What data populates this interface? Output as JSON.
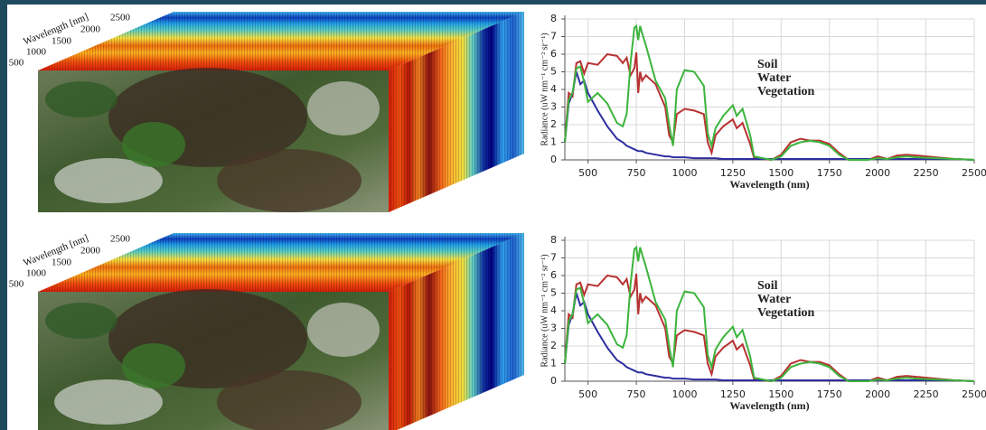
{
  "cubes": [
    {
      "axis_label": "Wavelength [nm]",
      "ticks": [
        500,
        1000,
        1500,
        2000,
        2500
      ]
    },
    {
      "axis_label": "Wavelength [nm]",
      "ticks": [
        500,
        1000,
        1500,
        2000,
        2500
      ]
    }
  ],
  "chart_data": [
    {
      "type": "line",
      "y_label": "Radiance (uW nm⁻¹ cm⁻² sr⁻¹)",
      "x_label": "Wavelength (nm)",
      "x": [
        380,
        400,
        420,
        440,
        460,
        480,
        500,
        550,
        600,
        650,
        680,
        700,
        720,
        740,
        750,
        760,
        770,
        780,
        800,
        850,
        900,
        920,
        940,
        960,
        1000,
        1050,
        1100,
        1120,
        1140,
        1160,
        1200,
        1250,
        1270,
        1300,
        1340,
        1360,
        1450,
        1500,
        1550,
        1600,
        1650,
        1700,
        1750,
        1800,
        1850,
        1950,
        2000,
        2050,
        2100,
        2150,
        2200,
        2300,
        2400,
        2500
      ],
      "series": [
        {
          "name": "Soil",
          "color": "#b83232",
          "values": [
            1,
            3.8,
            3.6,
            5.5,
            5.6,
            4.9,
            5.5,
            5.4,
            6.0,
            5.9,
            5.5,
            5.8,
            4.8,
            5.2,
            6.1,
            3.8,
            5.0,
            4.5,
            4.8,
            4.3,
            3.0,
            1.4,
            1.0,
            2.6,
            2.9,
            2.8,
            2.6,
            1.0,
            0.4,
            1.4,
            1.9,
            2.3,
            1.8,
            2.1,
            0.9,
            0.1,
            0,
            0.3,
            1.0,
            1.2,
            1.1,
            1.1,
            0.9,
            0.4,
            0,
            0,
            0.2,
            0.05,
            0.25,
            0.3,
            0.25,
            0.15,
            0.05,
            0
          ]
        },
        {
          "name": "Water",
          "color": "#2e2ea0",
          "values": [
            1,
            3.2,
            3.8,
            5.0,
            4.3,
            4.5,
            3.8,
            2.8,
            1.9,
            1.2,
            1.0,
            0.8,
            0.7,
            0.6,
            0.55,
            0.5,
            0.5,
            0.5,
            0.4,
            0.3,
            0.2,
            0.2,
            0.15,
            0.15,
            0.15,
            0.1,
            0.1,
            0.1,
            0.1,
            0.1,
            0.05,
            0.05,
            0.05,
            0.05,
            0.05,
            0.05,
            0.05,
            0.05,
            0.05,
            0.05,
            0.05,
            0.05,
            0.05,
            0.05,
            0.05,
            0.05,
            0.05,
            0.05,
            0.05,
            0.05,
            0.05,
            0.05,
            0.05,
            0
          ]
        },
        {
          "name": "Vegetation",
          "color": "#3cb43c",
          "values": [
            1,
            3.4,
            3.8,
            5.2,
            5.3,
            4.4,
            3.3,
            3.8,
            3.2,
            2.1,
            1.9,
            2.6,
            5.5,
            7.5,
            7.6,
            6.8,
            7.6,
            7.2,
            6.5,
            4.5,
            3.5,
            2.0,
            0.8,
            4.0,
            5.1,
            5.0,
            4.2,
            1.5,
            0.8,
            1.8,
            2.5,
            3.1,
            2.5,
            2.9,
            1.4,
            0.2,
            0,
            0.2,
            0.8,
            1.0,
            1.1,
            1.0,
            0.8,
            0.3,
            0,
            0,
            0.1,
            0.05,
            0.15,
            0.2,
            0.15,
            0.1,
            0.05,
            0
          ]
        }
      ],
      "xlim": [
        380,
        2500
      ],
      "xticks": [
        500,
        750,
        1000,
        1250,
        1500,
        1750,
        2000,
        2250,
        2500
      ],
      "ylim": [
        0,
        8
      ],
      "yticks": [
        0,
        1,
        2,
        3,
        4,
        5,
        6,
        7,
        8
      ],
      "grid": true,
      "legend_position": "upper-center"
    },
    {
      "type": "line",
      "y_label": "Radiance (uW nm⁻¹ cm⁻² sr⁻¹)",
      "x_label": "Wavelength (nm)",
      "x": [
        380,
        400,
        420,
        440,
        460,
        480,
        500,
        550,
        600,
        650,
        680,
        700,
        720,
        740,
        750,
        760,
        770,
        780,
        800,
        850,
        900,
        920,
        940,
        960,
        1000,
        1050,
        1100,
        1120,
        1140,
        1160,
        1200,
        1250,
        1270,
        1300,
        1340,
        1360,
        1450,
        1500,
        1550,
        1600,
        1650,
        1700,
        1750,
        1800,
        1850,
        1950,
        2000,
        2050,
        2100,
        2150,
        2200,
        2300,
        2400,
        2500
      ],
      "series": [
        {
          "name": "Soil",
          "color": "#b83232",
          "values": [
            1,
            3.8,
            3.6,
            5.5,
            5.6,
            4.9,
            5.5,
            5.4,
            6.0,
            5.9,
            5.5,
            5.8,
            4.8,
            5.2,
            6.1,
            3.8,
            5.0,
            4.5,
            4.8,
            4.3,
            3.0,
            1.4,
            1.0,
            2.6,
            2.9,
            2.8,
            2.6,
            1.0,
            0.4,
            1.4,
            1.9,
            2.3,
            1.8,
            2.1,
            0.9,
            0.1,
            0,
            0.3,
            1.0,
            1.2,
            1.1,
            1.1,
            0.9,
            0.4,
            0,
            0,
            0.2,
            0.05,
            0.25,
            0.3,
            0.25,
            0.15,
            0.05,
            0
          ]
        },
        {
          "name": "Water",
          "color": "#2e2ea0",
          "values": [
            1,
            3.2,
            3.8,
            5.0,
            4.3,
            4.5,
            3.8,
            2.8,
            1.9,
            1.2,
            1.0,
            0.8,
            0.7,
            0.6,
            0.55,
            0.5,
            0.5,
            0.5,
            0.4,
            0.3,
            0.2,
            0.2,
            0.15,
            0.15,
            0.15,
            0.1,
            0.1,
            0.1,
            0.1,
            0.1,
            0.05,
            0.05,
            0.05,
            0.05,
            0.05,
            0.05,
            0.05,
            0.05,
            0.05,
            0.05,
            0.05,
            0.05,
            0.05,
            0.05,
            0.05,
            0.05,
            0.05,
            0.05,
            0.05,
            0.05,
            0.05,
            0.05,
            0.05,
            0
          ]
        },
        {
          "name": "Vegetation",
          "color": "#3cb43c",
          "values": [
            1,
            3.4,
            3.8,
            5.2,
            5.3,
            4.4,
            3.3,
            3.8,
            3.2,
            2.1,
            1.9,
            2.6,
            5.5,
            7.5,
            7.6,
            6.8,
            7.6,
            7.2,
            6.5,
            4.5,
            3.5,
            2.0,
            0.8,
            4.0,
            5.1,
            5.0,
            4.2,
            1.5,
            0.8,
            1.8,
            2.5,
            3.1,
            2.5,
            2.9,
            1.4,
            0.2,
            0,
            0.2,
            0.8,
            1.0,
            1.1,
            1.0,
            0.8,
            0.3,
            0,
            0,
            0.1,
            0.05,
            0.15,
            0.2,
            0.15,
            0.1,
            0.05,
            0
          ]
        }
      ],
      "xlim": [
        380,
        2500
      ],
      "xticks": [
        500,
        750,
        1000,
        1250,
        1500,
        1750,
        2000,
        2250,
        2500
      ],
      "ylim": [
        0,
        8
      ],
      "yticks": [
        0,
        1,
        2,
        3,
        4,
        5,
        6,
        7,
        8
      ],
      "grid": true,
      "legend_position": "upper-center"
    }
  ]
}
